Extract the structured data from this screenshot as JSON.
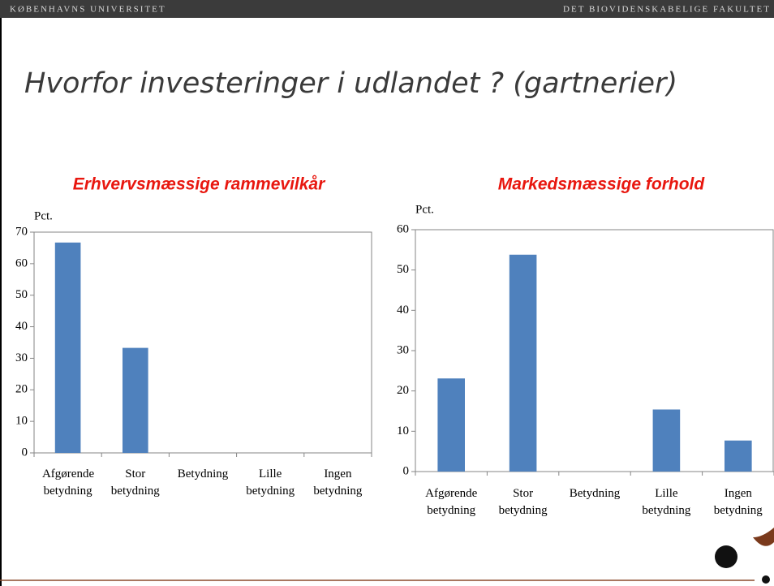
{
  "header": {
    "left": "KØBENHAVNS UNIVERSITET",
    "right": "DET BIOVIDENSKABELIGE FAKULTET"
  },
  "title": "Hvorfor investeringer i udlandet ? (gartnerier)",
  "chart_data": [
    {
      "type": "bar",
      "title": "Erhvervsmæssige rammevilkår",
      "y_label": "Pct.",
      "categories": [
        "Afgørende betydning",
        "Stor betydning",
        "Betydning",
        "Lille betydning",
        "Ingen betydning"
      ],
      "values": [
        66.7,
        33.3,
        0,
        0,
        0
      ],
      "color": "#4f81bd",
      "ylim": [
        0,
        70
      ],
      "yticks": [
        0,
        10,
        20,
        30,
        40,
        50,
        60,
        70
      ]
    },
    {
      "type": "bar",
      "title": "Markedsmæssige forhold",
      "y_label": "Pct.",
      "categories": [
        "Afgørende betydning",
        "Stor betydning",
        "Betydning",
        "Lille betydning",
        "Ingen betydning"
      ],
      "values": [
        23.1,
        53.8,
        0,
        15.4,
        7.7
      ],
      "color": "#4f81bd",
      "ylim": [
        0,
        60
      ],
      "yticks": [
        0,
        10,
        20,
        30,
        40,
        50,
        60
      ]
    }
  ]
}
